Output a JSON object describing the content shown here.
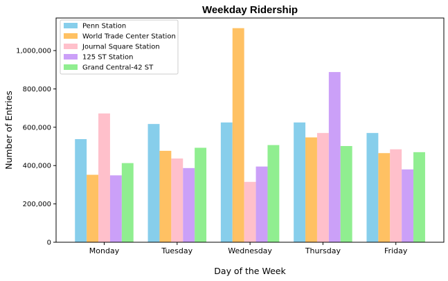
{
  "chart_data": {
    "type": "bar",
    "title": "Weekday Ridership",
    "xlabel": "Day of the Week",
    "ylabel": "Number of Entries",
    "categories": [
      "Monday",
      "Tuesday",
      "Wednesday",
      "Thursday",
      "Friday"
    ],
    "ylim": [
      0,
      1170000
    ],
    "yticks": [
      0,
      200000,
      400000,
      600000,
      800000,
      1000000
    ],
    "ytick_labels": [
      "0",
      "200,000",
      "400,000",
      "600,000",
      "800,000",
      "1,000,000"
    ],
    "grid": false,
    "legend_position": "top-left",
    "series": [
      {
        "name": "Penn Station",
        "color": "#87CEEB",
        "values": [
          538000,
          617000,
          625000,
          625000,
          570000
        ]
      },
      {
        "name": "World Trade Center Station",
        "color": "#FFC163",
        "values": [
          352000,
          477000,
          1117000,
          547000,
          465000
        ]
      },
      {
        "name": "Journal Square Station",
        "color": "#FFC0CB",
        "values": [
          672000,
          437000,
          315000,
          570000,
          485000
        ]
      },
      {
        "name": "125 ST Station",
        "color": "#CBA0F8",
        "values": [
          349000,
          387000,
          395000,
          888000,
          380000
        ]
      },
      {
        "name": "Grand Central-42 ST",
        "color": "#90EE90",
        "values": [
          413000,
          493000,
          507000,
          502000,
          470000
        ]
      }
    ]
  }
}
